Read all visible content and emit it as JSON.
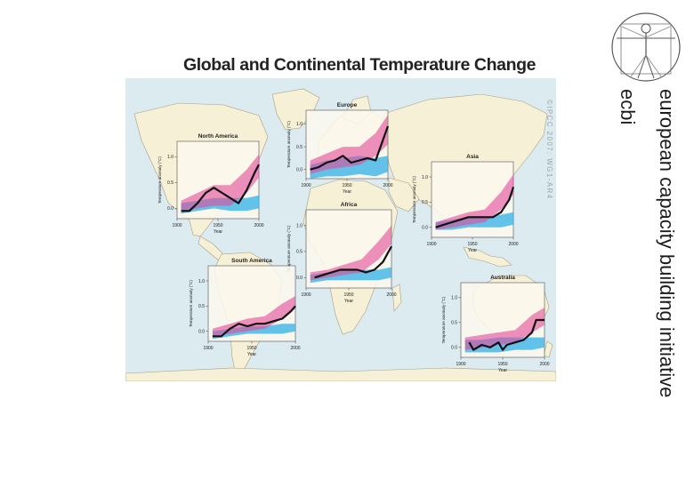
{
  "slide": {
    "figure_title": "Global and Continental Temperature Change",
    "organization": "european capacity building initiative",
    "organization_abbr": "ecbi",
    "copyright": "©IPCC 2007: WG1-AR4",
    "logo": "vitruvian-man-logo"
  },
  "colors": {
    "ocean": "#dcebf0",
    "land": "#f6f0d6",
    "land_stroke": "#a89f86",
    "natural_band": "#30b0e8",
    "anthropogenic_band": "#e24a97",
    "observed_line": "#111111"
  },
  "chart_data": [
    {
      "type": "line",
      "title": "North America",
      "xlabel": "Year",
      "ylabel": "Temperature anomaly (°C)",
      "x_ticks": [
        "1900",
        "1950",
        "2000"
      ],
      "y_ticks": [
        "0.0",
        "0.5",
        "1.0"
      ],
      "xlim": [
        1900,
        2000
      ],
      "ylim": [
        -0.2,
        1.3
      ],
      "series": [
        {
          "values": [
            [
              1905,
              -0.05
            ],
            [
              1915,
              -0.05
            ],
            [
              1925,
              0.1
            ],
            [
              1935,
              0.3
            ],
            [
              1945,
              0.4
            ],
            [
              1955,
              0.3
            ],
            [
              1965,
              0.2
            ],
            [
              1975,
              0.1
            ],
            [
              1985,
              0.35
            ],
            [
              1995,
              0.7
            ],
            [
              2000,
              0.85
            ]
          ]
        }
      ],
      "bands": [
        {
          "x": [
            1905,
            1925,
            1945,
            1965,
            1985,
            2000
          ],
          "low": [
            -0.1,
            -0.05,
            0.0,
            -0.05,
            -0.05,
            0.0
          ],
          "high": [
            0.1,
            0.15,
            0.2,
            0.2,
            0.2,
            0.25
          ]
        },
        {
          "x": [
            1905,
            1925,
            1945,
            1965,
            1985,
            2000
          ],
          "low": [
            -0.05,
            0.0,
            0.05,
            0.05,
            0.3,
            0.6
          ],
          "high": [
            0.15,
            0.3,
            0.45,
            0.45,
            0.75,
            1.05
          ]
        }
      ]
    },
    {
      "type": "line",
      "title": "Europe",
      "xlabel": "Year",
      "ylabel": "Temperature anomaly (°C)",
      "x_ticks": [
        "1900",
        "1950",
        "2000"
      ],
      "y_ticks": [
        "0.0",
        "0.5",
        "1.0"
      ],
      "xlim": [
        1900,
        2000
      ],
      "ylim": [
        -0.2,
        1.3
      ],
      "series": [
        {
          "values": [
            [
              1905,
              0.0
            ],
            [
              1915,
              0.05
            ],
            [
              1925,
              0.15
            ],
            [
              1935,
              0.2
            ],
            [
              1945,
              0.3
            ],
            [
              1955,
              0.15
            ],
            [
              1965,
              0.2
            ],
            [
              1975,
              0.25
            ],
            [
              1985,
              0.2
            ],
            [
              1995,
              0.7
            ],
            [
              2000,
              0.95
            ]
          ]
        }
      ],
      "bands": [
        {
          "x": [
            1905,
            1925,
            1945,
            1965,
            1985,
            2000
          ],
          "low": [
            -0.2,
            -0.15,
            -0.15,
            -0.1,
            -0.15,
            -0.05
          ],
          "high": [
            0.1,
            0.2,
            0.25,
            0.3,
            0.25,
            0.3
          ]
        },
        {
          "x": [
            1905,
            1925,
            1945,
            1965,
            1985,
            2000
          ],
          "low": [
            -0.1,
            0.0,
            0.05,
            0.1,
            0.3,
            0.55
          ],
          "high": [
            0.2,
            0.35,
            0.5,
            0.5,
            0.8,
            1.2
          ]
        }
      ]
    },
    {
      "type": "line",
      "title": "Asia",
      "xlabel": "Year",
      "ylabel": "Temperature anomaly (°C)",
      "x_ticks": [
        "1900",
        "1950",
        "2000"
      ],
      "y_ticks": [
        "0.0",
        "0.5",
        "1.0"
      ],
      "xlim": [
        1900,
        2000
      ],
      "ylim": [
        -0.2,
        1.3
      ],
      "series": [
        {
          "values": [
            [
              1905,
              0.0
            ],
            [
              1915,
              0.05
            ],
            [
              1925,
              0.1
            ],
            [
              1935,
              0.15
            ],
            [
              1945,
              0.2
            ],
            [
              1955,
              0.2
            ],
            [
              1965,
              0.2
            ],
            [
              1975,
              0.2
            ],
            [
              1985,
              0.3
            ],
            [
              1995,
              0.55
            ],
            [
              2000,
              0.8
            ]
          ]
        }
      ],
      "bands": [
        {
          "x": [
            1905,
            1925,
            1945,
            1965,
            1985,
            2000
          ],
          "low": [
            -0.05,
            -0.05,
            0.0,
            0.0,
            0.0,
            0.05
          ],
          "high": [
            0.1,
            0.15,
            0.2,
            0.2,
            0.25,
            0.3
          ]
        },
        {
          "x": [
            1905,
            1925,
            1945,
            1965,
            1985,
            2000
          ],
          "low": [
            -0.05,
            0.0,
            0.05,
            0.1,
            0.35,
            0.65
          ],
          "high": [
            0.1,
            0.2,
            0.3,
            0.35,
            0.7,
            1.05
          ]
        }
      ]
    },
    {
      "type": "line",
      "title": "Africa",
      "xlabel": "Year",
      "ylabel": "Temperature anomaly (°C)",
      "x_ticks": [
        "1900",
        "1950",
        "2000"
      ],
      "y_ticks": [
        "0.0",
        "0.5",
        "1.0"
      ],
      "xlim": [
        1900,
        2000
      ],
      "ylim": [
        -0.2,
        1.3
      ],
      "series": [
        {
          "values": [
            [
              1910,
              0.0
            ],
            [
              1920,
              0.05
            ],
            [
              1930,
              0.1
            ],
            [
              1940,
              0.15
            ],
            [
              1950,
              0.15
            ],
            [
              1960,
              0.15
            ],
            [
              1970,
              0.1
            ],
            [
              1980,
              0.15
            ],
            [
              1990,
              0.3
            ],
            [
              2000,
              0.6
            ]
          ]
        }
      ],
      "bands": [
        {
          "x": [
            1905,
            1925,
            1945,
            1965,
            1985,
            2000
          ],
          "low": [
            -0.1,
            -0.05,
            -0.05,
            -0.05,
            -0.05,
            0.0
          ],
          "high": [
            0.05,
            0.1,
            0.15,
            0.15,
            0.15,
            0.2
          ]
        },
        {
          "x": [
            1905,
            1925,
            1945,
            1965,
            1985,
            2000
          ],
          "low": [
            -0.05,
            0.0,
            0.05,
            0.1,
            0.35,
            0.65
          ],
          "high": [
            0.1,
            0.15,
            0.25,
            0.35,
            0.7,
            1.0
          ]
        }
      ]
    },
    {
      "type": "line",
      "title": "South America",
      "xlabel": "Year",
      "ylabel": "Temperature anomaly (°C)",
      "x_ticks": [
        "1900",
        "1950",
        "2000"
      ],
      "y_ticks": [
        "0.0",
        "0.5",
        "1.0"
      ],
      "xlim": [
        1900,
        2000
      ],
      "ylim": [
        -0.2,
        1.3
      ],
      "series": [
        {
          "values": [
            [
              1905,
              -0.1
            ],
            [
              1915,
              -0.1
            ],
            [
              1925,
              0.05
            ],
            [
              1935,
              0.15
            ],
            [
              1945,
              0.1
            ],
            [
              1955,
              0.15
            ],
            [
              1965,
              0.15
            ],
            [
              1975,
              0.2
            ],
            [
              1985,
              0.25
            ],
            [
              1995,
              0.4
            ],
            [
              2000,
              0.5
            ]
          ]
        }
      ],
      "bands": [
        {
          "x": [
            1905,
            1925,
            1945,
            1965,
            1985,
            2000
          ],
          "low": [
            -0.15,
            -0.1,
            -0.05,
            -0.05,
            -0.05,
            0.0
          ],
          "high": [
            0.0,
            0.05,
            0.1,
            0.1,
            0.15,
            0.15
          ]
        },
        {
          "x": [
            1905,
            1925,
            1945,
            1965,
            1985,
            2000
          ],
          "low": [
            -0.1,
            -0.05,
            0.0,
            0.05,
            0.25,
            0.45
          ],
          "high": [
            0.05,
            0.15,
            0.25,
            0.3,
            0.55,
            0.7
          ]
        }
      ]
    },
    {
      "type": "line",
      "title": "Australia",
      "xlabel": "Year",
      "ylabel": "Temperature anomaly (°C)",
      "x_ticks": [
        "1900",
        "1950",
        "2000"
      ],
      "y_ticks": [
        "0.0",
        "0.5",
        "1.0"
      ],
      "xlim": [
        1900,
        2000
      ],
      "ylim": [
        -0.2,
        1.3
      ],
      "series": [
        {
          "values": [
            [
              1910,
              0.1
            ],
            [
              1915,
              -0.05
            ],
            [
              1925,
              0.05
            ],
            [
              1935,
              0.0
            ],
            [
              1945,
              0.1
            ],
            [
              1950,
              -0.05
            ],
            [
              1955,
              0.05
            ],
            [
              1965,
              0.1
            ],
            [
              1975,
              0.15
            ],
            [
              1985,
              0.3
            ],
            [
              1990,
              0.55
            ],
            [
              2000,
              0.55
            ]
          ]
        }
      ],
      "bands": [
        {
          "x": [
            1905,
            1925,
            1945,
            1965,
            1985,
            2000
          ],
          "low": [
            -0.1,
            -0.1,
            -0.1,
            -0.05,
            -0.05,
            0.0
          ],
          "high": [
            0.15,
            0.15,
            0.2,
            0.2,
            0.2,
            0.2
          ]
        },
        {
          "x": [
            1905,
            1925,
            1945,
            1965,
            1985,
            2000
          ],
          "low": [
            -0.05,
            0.0,
            0.05,
            0.1,
            0.3,
            0.45
          ],
          "high": [
            0.2,
            0.25,
            0.3,
            0.35,
            0.65,
            0.8
          ]
        }
      ]
    }
  ]
}
